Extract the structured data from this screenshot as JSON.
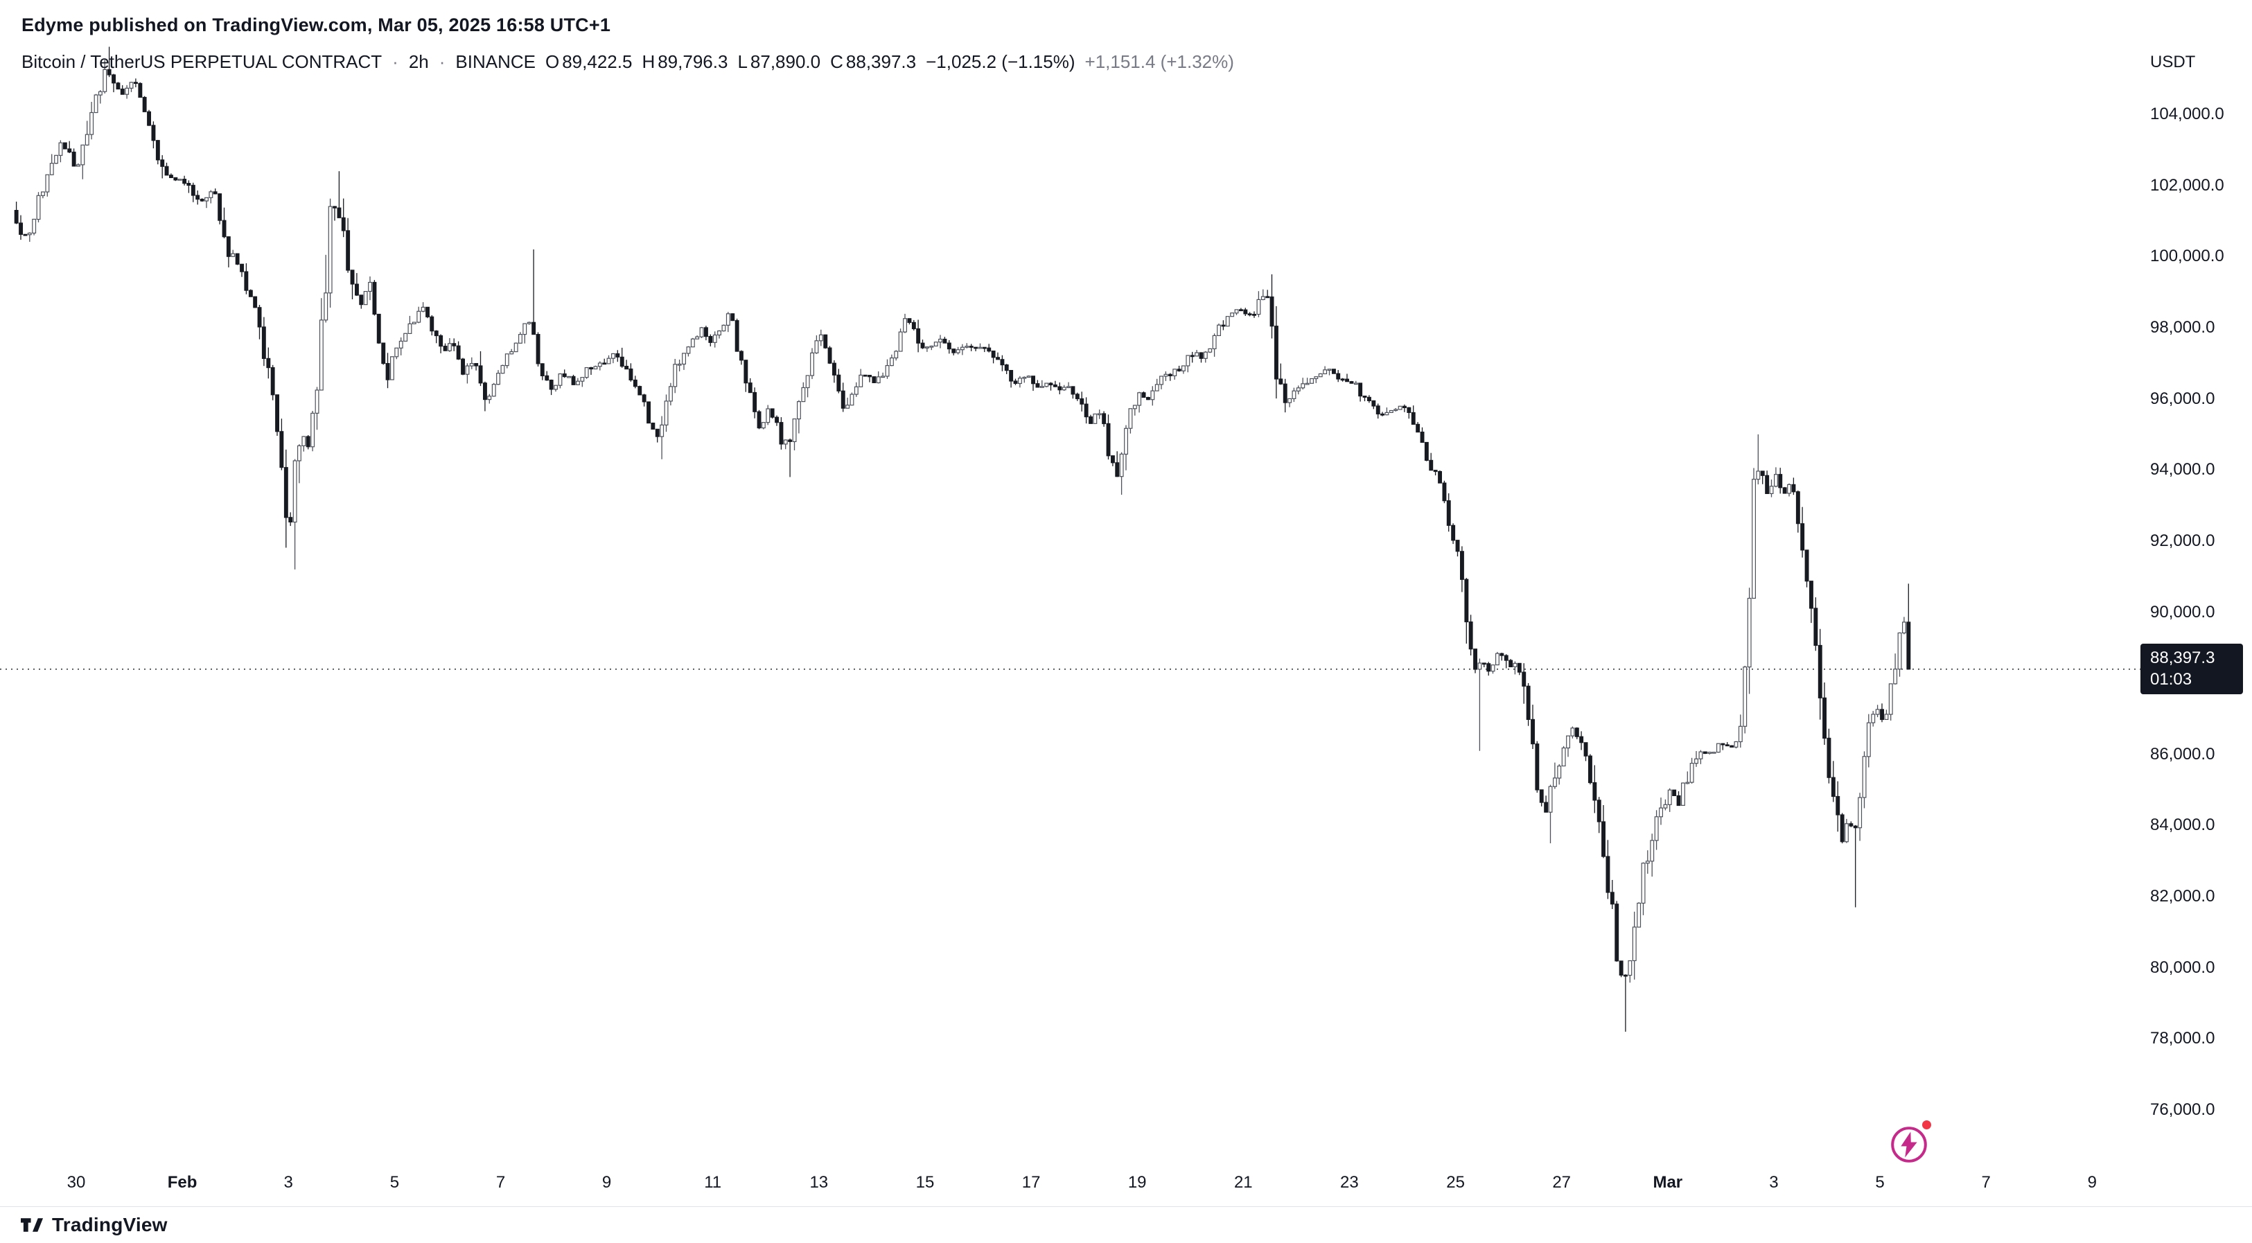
{
  "attribution": {
    "published_line": "Edyme published on TradingView.com, Mar 05, 2025 16:58 UTC+1"
  },
  "header": {
    "symbol_description": "Bitcoin / TetherUS PERPETUAL CONTRACT",
    "separator": "·",
    "interval": "2h",
    "exchange": "BINANCE",
    "ohlc": {
      "open_label": "O",
      "open": "89,422.5",
      "high_label": "H",
      "high": "89,796.3",
      "low_label": "L",
      "low": "87,890.0",
      "close_label": "C",
      "close": "88,397.3"
    },
    "change": "−1,025.2 (−1.15%)",
    "extended_change": "+1,151.4 (+1.32%)"
  },
  "price_scale": {
    "currency": "USDT",
    "last_price_label": "88,397.3",
    "countdown": "01:03"
  },
  "footer": {
    "brand": "TradingView"
  },
  "colors": {
    "text": "#131722",
    "muted": "#787B86",
    "border": "#e0e3eb",
    "up_body": "#ffffff",
    "up_border": "#4c505a",
    "down_body": "#171a21",
    "price_line": "#131722",
    "label_bg": "#131722",
    "label_text": "#ffffff",
    "bolt": "#c52a8a",
    "notification_dot": "#f23645"
  },
  "chart_data": {
    "type": "candlestick",
    "title": "Bitcoin / TetherUS PERPETUAL CONTRACT",
    "interval": "2h",
    "exchange": "BINANCE",
    "grid": false,
    "legend_position": "none",
    "last_price": 88397.3,
    "countdown": "01:03",
    "ohlc_current": {
      "open": 89422.5,
      "high": 89796.3,
      "low": 87890.0,
      "close": 88397.3,
      "change": -1025.2,
      "change_pct": -1.15,
      "extended_change": 1151.4,
      "extended_change_pct": 1.32
    },
    "y_axis": {
      "min": 75500,
      "max": 106300,
      "tick_step": 2000,
      "ticks": [
        {
          "v": 104000,
          "label": "104,000.0"
        },
        {
          "v": 102000,
          "label": "102,000.0"
        },
        {
          "v": 100000,
          "label": "100,000.0"
        },
        {
          "v": 98000,
          "label": "98,000.0"
        },
        {
          "v": 96000,
          "label": "96,000.0"
        },
        {
          "v": 94000,
          "label": "94,000.0"
        },
        {
          "v": 92000,
          "label": "92,000.0"
        },
        {
          "v": 90000,
          "label": "90,000.0"
        },
        {
          "v": 88000,
          "label": "88,000.0"
        },
        {
          "v": 86000,
          "label": "86,000.0"
        },
        {
          "v": 84000,
          "label": "84,000.0"
        },
        {
          "v": 82000,
          "label": "82,000.0"
        },
        {
          "v": 80000,
          "label": "80,000.0"
        },
        {
          "v": 78000,
          "label": "78,000.0"
        },
        {
          "v": 76000,
          "label": "76,000.0"
        }
      ]
    },
    "x_axis": {
      "day0": "Jan 30 2025",
      "ticks": [
        {
          "d": 0,
          "label": "30"
        },
        {
          "d": 2,
          "label": "Feb",
          "bold": true
        },
        {
          "d": 4,
          "label": "3"
        },
        {
          "d": 6,
          "label": "5"
        },
        {
          "d": 8,
          "label": "7"
        },
        {
          "d": 10,
          "label": "9"
        },
        {
          "d": 12,
          "label": "11"
        },
        {
          "d": 14,
          "label": "13"
        },
        {
          "d": 16,
          "label": "15"
        },
        {
          "d": 18,
          "label": "17"
        },
        {
          "d": 20,
          "label": "19"
        },
        {
          "d": 22,
          "label": "21"
        },
        {
          "d": 24,
          "label": "23"
        },
        {
          "d": 26,
          "label": "25"
        },
        {
          "d": 28,
          "label": "27"
        },
        {
          "d": 30,
          "label": "Mar",
          "bold": true
        },
        {
          "d": 32,
          "label": "3"
        },
        {
          "d": 34,
          "label": "5"
        },
        {
          "d": 36,
          "label": "7"
        },
        {
          "d": 38,
          "label": "9"
        }
      ]
    },
    "price_path": [
      [
        -1.17,
        101300
      ],
      [
        -0.9,
        100400
      ],
      [
        -0.63,
        101800
      ],
      [
        -0.22,
        103200
      ],
      [
        0.05,
        102400
      ],
      [
        0.33,
        104100
      ],
      [
        0.6,
        105200
      ],
      [
        0.87,
        104500
      ],
      [
        1.14,
        105000
      ],
      [
        1.41,
        103700
      ],
      [
        1.69,
        102300
      ],
      [
        2.1,
        102100
      ],
      [
        2.37,
        101500
      ],
      [
        2.64,
        101900
      ],
      [
        2.91,
        100200
      ],
      [
        3.18,
        99400
      ],
      [
        3.46,
        98400
      ],
      [
        3.73,
        96100
      ],
      [
        3.92,
        94300
      ],
      [
        4.05,
        91900
      ],
      [
        4.22,
        95100
      ],
      [
        4.41,
        94700
      ],
      [
        4.6,
        96500
      ],
      [
        4.82,
        100900
      ],
      [
        4.95,
        101600
      ],
      [
        5.17,
        99700
      ],
      [
        5.36,
        98500
      ],
      [
        5.58,
        99200
      ],
      [
        5.77,
        97400
      ],
      [
        5.9,
        96500
      ],
      [
        6.12,
        97600
      ],
      [
        6.31,
        98000
      ],
      [
        6.59,
        98700
      ],
      [
        6.72,
        98100
      ],
      [
        6.94,
        97200
      ],
      [
        7.13,
        97700
      ],
      [
        7.32,
        96600
      ],
      [
        7.54,
        97200
      ],
      [
        7.76,
        95900
      ],
      [
        7.95,
        96500
      ],
      [
        8.14,
        97200
      ],
      [
        8.35,
        97500
      ],
      [
        8.57,
        98200
      ],
      [
        8.76,
        96900
      ],
      [
        8.98,
        96300
      ],
      [
        9.22,
        96700
      ],
      [
        9.44,
        96400
      ],
      [
        9.71,
        96900
      ],
      [
        9.99,
        97000
      ],
      [
        10.2,
        97300
      ],
      [
        10.45,
        96600
      ],
      [
        10.67,
        96200
      ],
      [
        10.86,
        95300
      ],
      [
        11.02,
        95000
      ],
      [
        11.21,
        96400
      ],
      [
        11.4,
        97100
      ],
      [
        11.62,
        97600
      ],
      [
        11.84,
        98000
      ],
      [
        12.03,
        97600
      ],
      [
        12.22,
        98100
      ],
      [
        12.38,
        98400
      ],
      [
        12.57,
        97000
      ],
      [
        12.76,
        95900
      ],
      [
        12.93,
        95200
      ],
      [
        13.12,
        95700
      ],
      [
        13.31,
        94900
      ],
      [
        13.47,
        94700
      ],
      [
        13.66,
        96000
      ],
      [
        13.85,
        96800
      ],
      [
        14.07,
        97900
      ],
      [
        14.29,
        96800
      ],
      [
        14.48,
        95600
      ],
      [
        14.69,
        96300
      ],
      [
        14.88,
        96700
      ],
      [
        15.1,
        96400
      ],
      [
        15.29,
        96800
      ],
      [
        15.51,
        97500
      ],
      [
        15.7,
        98300
      ],
      [
        15.92,
        97600
      ],
      [
        16.11,
        97400
      ],
      [
        16.33,
        97600
      ],
      [
        16.52,
        97300
      ],
      [
        16.73,
        97500
      ],
      [
        16.93,
        97400
      ],
      [
        17.14,
        97500
      ],
      [
        17.33,
        97200
      ],
      [
        17.55,
        96800
      ],
      [
        17.74,
        96400
      ],
      [
        17.93,
        96700
      ],
      [
        18.15,
        96300
      ],
      [
        18.34,
        96500
      ],
      [
        18.56,
        96200
      ],
      [
        18.75,
        96400
      ],
      [
        18.97,
        95900
      ],
      [
        19.16,
        95400
      ],
      [
        19.32,
        95700
      ],
      [
        19.51,
        94500
      ],
      [
        19.67,
        93700
      ],
      [
        19.86,
        95400
      ],
      [
        20.05,
        96100
      ],
      [
        20.27,
        96000
      ],
      [
        20.46,
        96500
      ],
      [
        20.68,
        96700
      ],
      [
        20.87,
        96900
      ],
      [
        21.09,
        97300
      ],
      [
        21.28,
        97100
      ],
      [
        21.5,
        97800
      ],
      [
        21.69,
        98200
      ],
      [
        21.88,
        98600
      ],
      [
        22.04,
        98400
      ],
      [
        22.23,
        98300
      ],
      [
        22.42,
        99000
      ],
      [
        22.56,
        98500
      ],
      [
        22.69,
        96400
      ],
      [
        22.86,
        95900
      ],
      [
        23.05,
        96300
      ],
      [
        23.27,
        96500
      ],
      [
        23.46,
        96700
      ],
      [
        23.67,
        96800
      ],
      [
        23.86,
        96600
      ],
      [
        24.08,
        96500
      ],
      [
        24.27,
        96100
      ],
      [
        24.46,
        95800
      ],
      [
        24.63,
        95500
      ],
      [
        24.82,
        95700
      ],
      [
        25.01,
        95800
      ],
      [
        25.22,
        95400
      ],
      [
        25.41,
        94700
      ],
      [
        25.58,
        94100
      ],
      [
        25.77,
        93500
      ],
      [
        25.93,
        92400
      ],
      [
        26.1,
        91700
      ],
      [
        26.23,
        89700
      ],
      [
        26.37,
        88300
      ],
      [
        26.53,
        88800
      ],
      [
        26.67,
        88300
      ],
      [
        26.86,
        88900
      ],
      [
        27.05,
        88400
      ],
      [
        27.21,
        88800
      ],
      [
        27.35,
        87400
      ],
      [
        27.48,
        86300
      ],
      [
        27.62,
        84700
      ],
      [
        27.76,
        84200
      ],
      [
        27.89,
        85400
      ],
      [
        28.08,
        86200
      ],
      [
        28.27,
        86700
      ],
      [
        28.44,
        86200
      ],
      [
        28.6,
        85300
      ],
      [
        28.76,
        84000
      ],
      [
        28.9,
        82500
      ],
      [
        29.03,
        81100
      ],
      [
        29.17,
        79500
      ],
      [
        29.31,
        79900
      ],
      [
        29.44,
        81400
      ],
      [
        29.58,
        82700
      ],
      [
        29.74,
        83700
      ],
      [
        29.9,
        84400
      ],
      [
        30.07,
        85000
      ],
      [
        30.23,
        84500
      ],
      [
        30.39,
        85300
      ],
      [
        30.56,
        85900
      ],
      [
        30.72,
        86100
      ],
      [
        30.88,
        86000
      ],
      [
        31.05,
        86300
      ],
      [
        31.21,
        86100
      ],
      [
        31.37,
        86400
      ],
      [
        31.51,
        88300
      ],
      [
        31.62,
        93300
      ],
      [
        31.76,
        94000
      ],
      [
        31.92,
        93400
      ],
      [
        32.08,
        93800
      ],
      [
        32.24,
        93300
      ],
      [
        32.38,
        93800
      ],
      [
        32.52,
        92400
      ],
      [
        32.65,
        90600
      ],
      [
        32.79,
        89500
      ],
      [
        32.92,
        87600
      ],
      [
        33.06,
        85900
      ],
      [
        33.17,
        84600
      ],
      [
        33.31,
        83600
      ],
      [
        33.44,
        84100
      ],
      [
        33.58,
        83900
      ],
      [
        33.71,
        85600
      ],
      [
        33.85,
        86800
      ],
      [
        33.99,
        87200
      ],
      [
        34.12,
        86900
      ],
      [
        34.26,
        87900
      ],
      [
        34.39,
        89300
      ],
      [
        34.47,
        90200
      ],
      [
        34.58,
        88397.3
      ]
    ],
    "wick_extremes": [
      [
        0.6,
        105900,
        "h"
      ],
      [
        4.05,
        91200,
        "l"
      ],
      [
        4.95,
        102400,
        "h"
      ],
      [
        8.57,
        100200,
        "h"
      ],
      [
        11.02,
        94300,
        "l"
      ],
      [
        13.38,
        93800,
        "l"
      ],
      [
        19.67,
        93300,
        "l"
      ],
      [
        22.47,
        99500,
        "h"
      ],
      [
        26.45,
        86100,
        "l"
      ],
      [
        27.76,
        83500,
        "l"
      ],
      [
        29.2,
        78200,
        "l"
      ],
      [
        31.65,
        95000,
        "h"
      ],
      [
        33.5,
        81700,
        "l"
      ],
      [
        34.5,
        90800,
        "h"
      ]
    ]
  }
}
